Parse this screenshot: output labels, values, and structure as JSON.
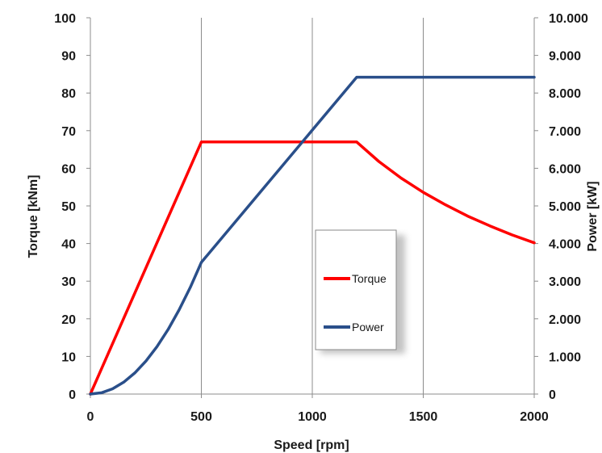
{
  "chart_data": {
    "type": "line",
    "xlabel": "Speed [rpm]",
    "ylabel_left": "Torque [kNm]",
    "ylabel_right": "Power [kW]",
    "xlim": [
      0,
      2000
    ],
    "ylim_left": [
      0,
      100
    ],
    "ylim_right": [
      0,
      10000
    ],
    "x_ticks": [
      "0",
      "500",
      "1000",
      "1500",
      "2000"
    ],
    "y_left_ticks": [
      "0",
      "10",
      "20",
      "30",
      "40",
      "50",
      "60",
      "70",
      "80",
      "90",
      "100"
    ],
    "y_right_ticks": [
      "0",
      "1.000",
      "2.000",
      "3.000",
      "4.000",
      "5.000",
      "6.000",
      "7.000",
      "8.000",
      "9.000",
      "10.000"
    ],
    "grid": "vertical",
    "legend_position": "center-right",
    "series": [
      {
        "name": "Torque",
        "axis": "left",
        "color": "#ff0000",
        "x": [
          0,
          500,
          1200,
          1300,
          1400,
          1500,
          1600,
          1700,
          1800,
          1900,
          2000
        ],
        "y": [
          0,
          67,
          67,
          61.8,
          57.4,
          53.6,
          50.3,
          47.3,
          44.7,
          42.3,
          40.2
        ]
      },
      {
        "name": "Power",
        "axis": "right",
        "color": "#2a4f8a",
        "x": [
          0,
          50,
          100,
          150,
          200,
          250,
          300,
          350,
          400,
          450,
          500,
          1200,
          1300,
          1400,
          1500,
          1600,
          1700,
          1800,
          1900,
          2000
        ],
        "y": [
          0,
          35,
          140,
          315,
          560,
          875,
          1260,
          1715,
          2240,
          2835,
          3500,
          8420,
          8420,
          8420,
          8420,
          8420,
          8420,
          8420,
          8420,
          8420
        ]
      }
    ]
  }
}
